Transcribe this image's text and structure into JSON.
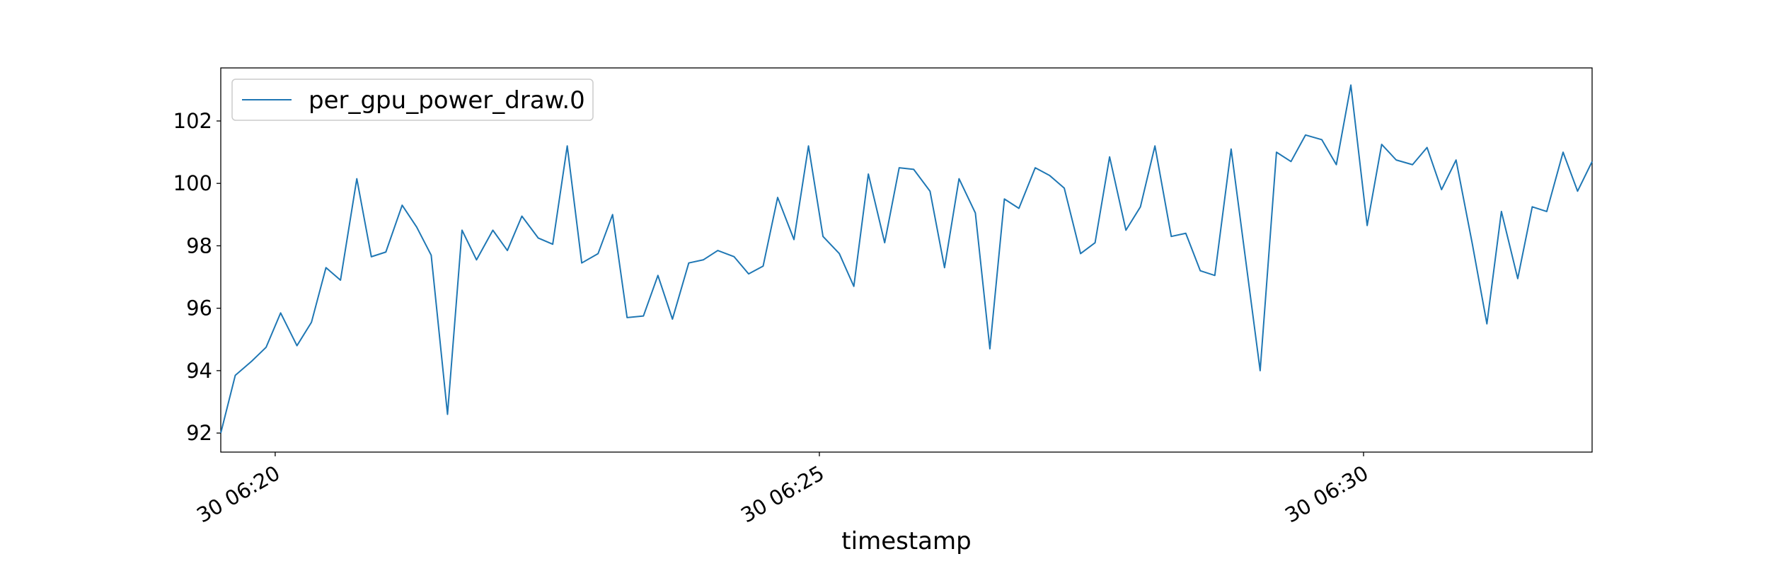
{
  "chart_data": {
    "type": "line",
    "xlabel": "timestamp",
    "x": [
      "06:19:30",
      "06:19:38",
      "06:19:47",
      "06:19:55",
      "06:20:03",
      "06:20:12",
      "06:20:20",
      "06:20:28",
      "06:20:36",
      "06:20:45",
      "06:20:53",
      "06:21:01",
      "06:21:10",
      "06:21:18",
      "06:21:26",
      "06:21:35",
      "06:21:43",
      "06:21:51",
      "06:22:00",
      "06:22:08",
      "06:22:16",
      "06:22:25",
      "06:22:33",
      "06:22:41",
      "06:22:49",
      "06:22:58",
      "06:23:06",
      "06:23:14",
      "06:23:23",
      "06:23:31",
      "06:23:39",
      "06:23:48",
      "06:23:56",
      "06:24:04",
      "06:24:13",
      "06:24:21",
      "06:24:29",
      "06:24:37",
      "06:24:46",
      "06:24:54",
      "06:25:02",
      "06:25:11",
      "06:25:19",
      "06:25:27",
      "06:25:36",
      "06:25:44",
      "06:25:52",
      "06:26:01",
      "06:26:09",
      "06:26:17",
      "06:26:26",
      "06:26:34",
      "06:26:42",
      "06:26:50",
      "06:26:59",
      "06:27:07",
      "06:27:15",
      "06:27:24",
      "06:27:32",
      "06:27:40",
      "06:27:49",
      "06:27:57",
      "06:28:05",
      "06:28:14",
      "06:28:22",
      "06:28:30",
      "06:28:38",
      "06:28:47",
      "06:28:55",
      "06:29:03",
      "06:29:12",
      "06:29:20",
      "06:29:28",
      "06:29:37",
      "06:29:45",
      "06:29:53",
      "06:30:02",
      "06:30:10",
      "06:30:18",
      "06:30:27",
      "06:30:35",
      "06:30:43",
      "06:30:51",
      "06:31:00",
      "06:31:08",
      "06:31:16",
      "06:31:25",
      "06:31:33",
      "06:31:41",
      "06:31:50",
      "06:31:58",
      "06:32:06"
    ],
    "series": [
      {
        "name": "per_gpu_power_draw.0",
        "color": "#1f77b4",
        "values": [
          92.0,
          93.85,
          94.3,
          94.75,
          95.85,
          94.8,
          95.55,
          97.3,
          96.9,
          100.15,
          97.65,
          97.8,
          99.3,
          98.6,
          97.7,
          92.6,
          98.5,
          97.55,
          98.5,
          97.85,
          98.95,
          98.25,
          98.05,
          101.2,
          97.45,
          97.75,
          99.0,
          95.7,
          95.75,
          97.05,
          95.65,
          97.45,
          97.55,
          97.85,
          97.65,
          97.1,
          97.35,
          99.55,
          98.2,
          101.2,
          98.3,
          97.75,
          96.7,
          100.3,
          98.1,
          100.5,
          100.45,
          99.75,
          97.3,
          100.15,
          99.05,
          94.7,
          99.5,
          99.2,
          100.5,
          100.25,
          99.85,
          97.75,
          98.1,
          100.85,
          98.5,
          99.25,
          101.2,
          98.3,
          98.4,
          97.2,
          97.05,
          101.1,
          97.55,
          94.0,
          101.0,
          100.7,
          101.55,
          101.4,
          100.6,
          103.15,
          98.65,
          101.25,
          100.75,
          100.6,
          101.15,
          99.8,
          100.75,
          98.05,
          95.5,
          99.1,
          96.95,
          99.25,
          99.1,
          101.0,
          99.75,
          100.7
        ]
      }
    ],
    "xlim": [
      "06:19:30",
      "06:32:06"
    ],
    "xticks": [
      {
        "value": "06:20:00",
        "label": "30 06:20"
      },
      {
        "value": "06:25:00",
        "label": "30 06:25"
      },
      {
        "value": "06:30:00",
        "label": "30 06:30"
      }
    ],
    "ylim": [
      91.39,
      103.7
    ],
    "yticks": [
      92,
      94,
      96,
      98,
      100,
      102
    ],
    "grid": false,
    "legend": "upper left"
  }
}
